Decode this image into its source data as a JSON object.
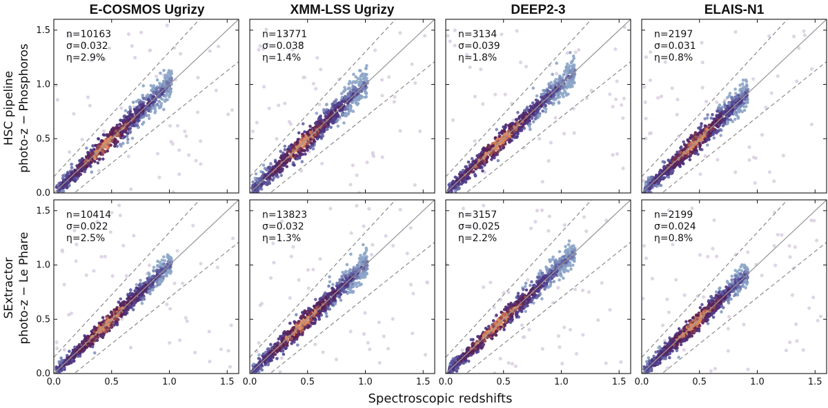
{
  "chart_data": {
    "type": "scatter",
    "subtype": "hexbin density grid",
    "x_axis_label": "Spectroscopic redshifts",
    "columns": [
      "E-COSMOS Ugrizy",
      "XMM-LSS Ugrizy",
      "DEEP2-3",
      "ELAIS-N1"
    ],
    "rows": [
      {
        "label_line1": "HSC pipeline",
        "label_line2": "photo-z − Phosphoros"
      },
      {
        "label_line1": "SExtractor",
        "label_line2": "photo-z − Le Phare"
      }
    ],
    "xlim": [
      0,
      1.6
    ],
    "ylim": [
      0,
      1.6
    ],
    "x_ticks": [
      0.0,
      0.5,
      1.0,
      1.5
    ],
    "x_tick_labels": [
      "0.0",
      "0.5",
      "1.0",
      "1.5"
    ],
    "y_ticks": [
      0.0,
      0.5,
      1.0,
      1.5
    ],
    "y_tick_labels": [
      "0.0",
      "0.5",
      "1.0",
      "1.5"
    ],
    "reference_lines": {
      "identity": "z_phot = z_spec",
      "outlier_bounds": "z_phot = z_spec ± 0.15(1 + z_spec)"
    },
    "panels": [
      {
        "row": 0,
        "col": 0,
        "n": "n=10163",
        "sigma": "σ=0.032",
        "eta": "η=2.9%",
        "zmax": 1.0,
        "spread": 0.035
      },
      {
        "row": 0,
        "col": 1,
        "n": "n=13771",
        "sigma": "σ=0.038",
        "eta": "η=1.4%",
        "zmax": 1.0,
        "spread": 0.04
      },
      {
        "row": 0,
        "col": 2,
        "n": "n=3134",
        "sigma": "σ=0.039",
        "eta": "η=1.8%",
        "zmax": 1.1,
        "spread": 0.035
      },
      {
        "row": 0,
        "col": 3,
        "n": "n=2197",
        "sigma": "σ=0.031",
        "eta": "η=0.8%",
        "zmax": 0.9,
        "spread": 0.035
      },
      {
        "row": 1,
        "col": 0,
        "n": "n=10414",
        "sigma": "σ=0.022",
        "eta": "η=2.5%",
        "zmax": 1.0,
        "spread": 0.028
      },
      {
        "row": 1,
        "col": 1,
        "n": "n=13823",
        "sigma": "σ=0.032",
        "eta": "η=1.3%",
        "zmax": 1.0,
        "spread": 0.035
      },
      {
        "row": 1,
        "col": 2,
        "n": "n=3157",
        "sigma": "σ=0.025",
        "eta": "η=2.2%",
        "zmax": 1.1,
        "spread": 0.03
      },
      {
        "row": 1,
        "col": 3,
        "n": "n=2199",
        "sigma": "σ=0.024",
        "eta": "η=0.8%",
        "zmax": 0.9,
        "spread": 0.03
      }
    ],
    "colors": {
      "identity_line": "#999999",
      "bound_line": "#888888",
      "outlier": "#dcd0e2",
      "density_low": "#8da6c8",
      "density_mid": "#4a3a8c",
      "density_high": "#5c1a4a",
      "density_peak": "#e08a5c"
    }
  }
}
